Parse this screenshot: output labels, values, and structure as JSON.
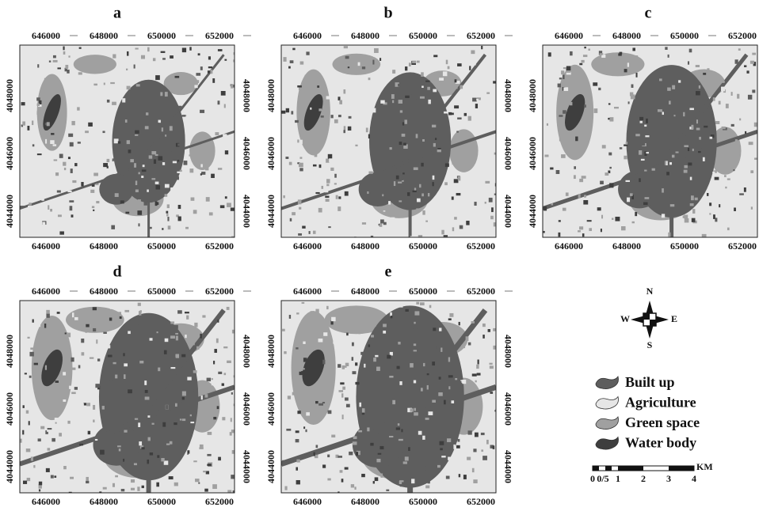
{
  "panels": [
    {
      "label": "a",
      "x_ticks": [
        "646000",
        "648000",
        "650000",
        "652000"
      ],
      "y_ticks": [
        "4044000",
        "4046000",
        "4048000"
      ]
    },
    {
      "label": "b",
      "x_ticks": [
        "646000",
        "648000",
        "650000",
        "652000"
      ],
      "y_ticks": [
        "4044000",
        "4046000",
        "4048000"
      ]
    },
    {
      "label": "c",
      "x_ticks": [
        "646000",
        "648000",
        "650000",
        "652000"
      ],
      "y_ticks": [
        "4044000",
        "4046000",
        "4048000"
      ]
    },
    {
      "label": "d",
      "x_ticks": [
        "646000",
        "648000",
        "650000",
        "652000"
      ],
      "y_ticks": [
        "4044000",
        "4046000",
        "4048000"
      ]
    },
    {
      "label": "e",
      "x_ticks": [
        "646000",
        "648000",
        "650000",
        "652000"
      ],
      "y_ticks": [
        "4044000",
        "4046000",
        "4048000"
      ]
    }
  ],
  "compass": {
    "north": "N",
    "south": "S",
    "east": "E",
    "west": "W"
  },
  "legend": [
    {
      "label": "Built up",
      "color": "#5e5e5e"
    },
    {
      "label": "Agriculture",
      "color": "#e6e6e6"
    },
    {
      "label": "Green space",
      "color": "#a0a0a0"
    },
    {
      "label": "Water body",
      "color": "#3e3e3e"
    }
  ],
  "scale_bar": {
    "labels": [
      "0",
      "0/5",
      "1",
      "2",
      "3",
      "4"
    ],
    "unit": "KM"
  }
}
